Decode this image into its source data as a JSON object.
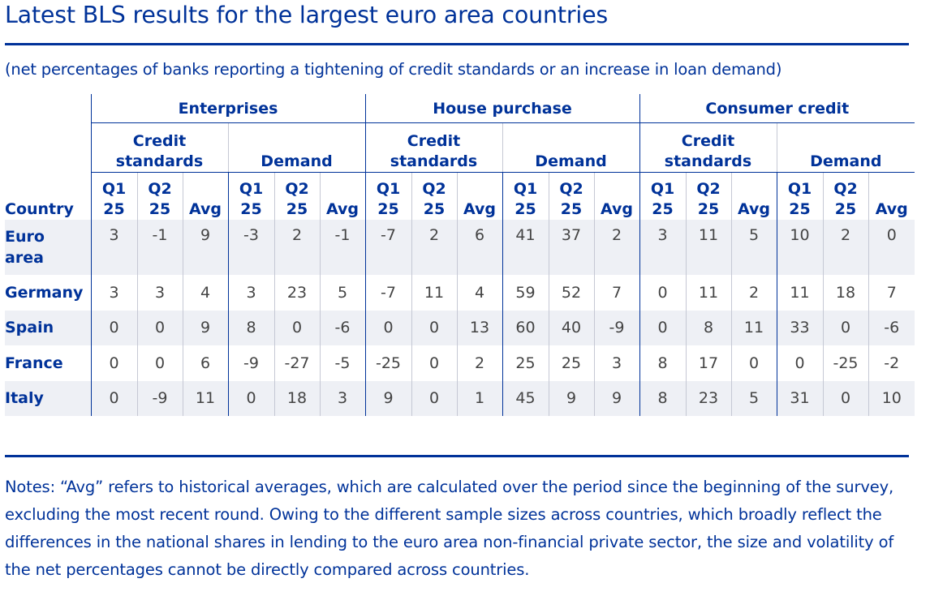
{
  "title": "Latest BLS results for the largest euro area countries",
  "subtitle": "(net percentages of banks reporting a tightening of credit standards or an increase in loan demand)",
  "table": {
    "country_header": "Country",
    "groups": [
      "Enterprises",
      "House purchase",
      "Consumer credit"
    ],
    "subgroups": {
      "credit_line1": "Credit",
      "credit_line2": "standards",
      "demand": "Demand"
    },
    "periods": {
      "q1_line1": "Q1",
      "q1_line2": "25",
      "q2_line1": "Q2",
      "q2_line2": "25",
      "avg": "Avg"
    },
    "rows": [
      {
        "country_line1": "Euro",
        "country_line2": "area",
        "values": [
          "3",
          "-1",
          "9",
          "-3",
          "2",
          "-1",
          "-7",
          "2",
          "6",
          "41",
          "37",
          "2",
          "3",
          "11",
          "5",
          "10",
          "2",
          "0"
        ]
      },
      {
        "country": "Germany",
        "values": [
          "3",
          "3",
          "4",
          "3",
          "23",
          "5",
          "-7",
          "11",
          "4",
          "59",
          "52",
          "7",
          "0",
          "11",
          "2",
          "11",
          "18",
          "7"
        ]
      },
      {
        "country": "Spain",
        "values": [
          "0",
          "0",
          "9",
          "8",
          "0",
          "-6",
          "0",
          "0",
          "13",
          "60",
          "40",
          "-9",
          "0",
          "8",
          "11",
          "33",
          "0",
          "-6"
        ]
      },
      {
        "country": "France",
        "values": [
          "0",
          "0",
          "6",
          "-9",
          "-27",
          "-5",
          "-25",
          "0",
          "2",
          "25",
          "25",
          "3",
          "8",
          "17",
          "0",
          "0",
          "-25",
          "-2"
        ]
      },
      {
        "country": "Italy",
        "values": [
          "0",
          "-9",
          "11",
          "0",
          "18",
          "3",
          "9",
          "0",
          "1",
          "45",
          "9",
          "9",
          "8",
          "23",
          "5",
          "31",
          "0",
          "10"
        ]
      }
    ]
  },
  "notes": "Notes: “Avg” refers to historical averages, which are calculated over the period since the beginning of the survey, excluding the most recent round. Owing to the different sample sizes across countries, which broadly reflect the differences in the national shares in lending to the euro area non-financial private sector, the size and volatility of the net percentages cannot be directly compared across countries.",
  "colors": {
    "accent": "#003299",
    "shade": "#eef0f5",
    "value_text": "#444444"
  }
}
